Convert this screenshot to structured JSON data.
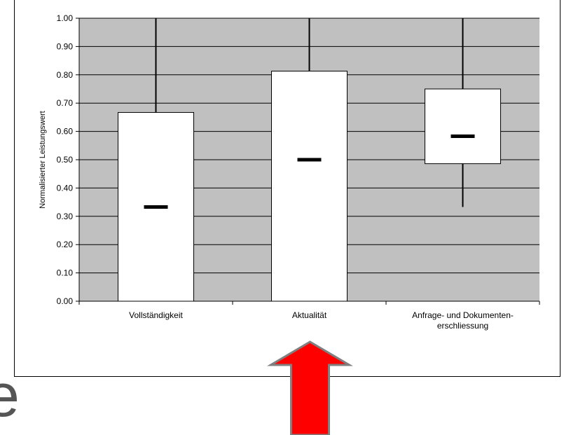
{
  "chart_data": {
    "type": "box",
    "ylabel": "Normalisierter Leistungswert",
    "xlabel": "",
    "title": "",
    "ylim": [
      0,
      1
    ],
    "yticks": [
      "0.00",
      "0.10",
      "0.20",
      "0.30",
      "0.40",
      "0.50",
      "0.60",
      "0.70",
      "0.80",
      "0.90",
      "1.00"
    ],
    "grid": true,
    "plot_background": "#c0c0c0",
    "box_fill": "#ffffff",
    "categories": [
      {
        "lines": [
          "Vollständigkeit"
        ],
        "whisker_low": 0.0,
        "box_low": 0.0,
        "median": 0.333,
        "box_high": 0.667,
        "whisker_high": 1.0
      },
      {
        "lines": [
          "Aktualität"
        ],
        "whisker_low": 0.0,
        "box_low": 0.0,
        "median": 0.5,
        "box_high": 0.813,
        "whisker_high": 1.0
      },
      {
        "lines": [
          "Anfrage- und Dokumenten-",
          "erschliessung"
        ],
        "whisker_low": 0.333,
        "box_low": 0.486,
        "median": 0.583,
        "box_high": 0.75,
        "whisker_high": 1.0
      }
    ]
  },
  "annotation": {
    "arrow_icon": "up-arrow-icon",
    "arrow_color": "#ff0000",
    "arrow_outline": "#808080",
    "points_to": "Aktualität"
  },
  "edge_glyph": "e"
}
